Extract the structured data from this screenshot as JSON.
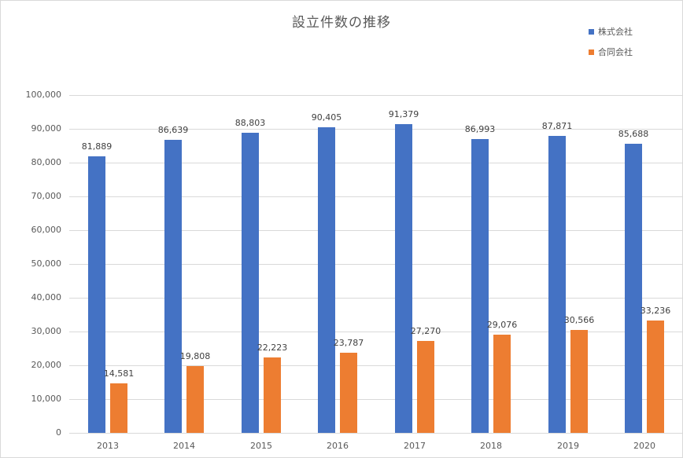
{
  "chart_data": {
    "type": "bar",
    "title": "設立件数の推移",
    "xlabel": "",
    "ylabel": "",
    "ylim": [
      0,
      100000
    ],
    "yticks": [
      0,
      10000,
      20000,
      30000,
      40000,
      50000,
      60000,
      70000,
      80000,
      90000,
      100000
    ],
    "ytick_labels": [
      "0",
      "10,000",
      "20,000",
      "30,000",
      "40,000",
      "50,000",
      "60,000",
      "70,000",
      "80,000",
      "90,000",
      "100,000"
    ],
    "grid": true,
    "legend_position": "top-right",
    "categories": [
      "2013",
      "2014",
      "2015",
      "2016",
      "2017",
      "2018",
      "2019",
      "2020"
    ],
    "series": [
      {
        "name": "株式会社",
        "color": "#4472c4",
        "values": [
          81889,
          86639,
          88803,
          90405,
          91379,
          86993,
          87871,
          85688
        ],
        "labels": [
          "81,889",
          "86,639",
          "88,803",
          "90,405",
          "91,379",
          "86,993",
          "87,871",
          "85,688"
        ]
      },
      {
        "name": "合同会社",
        "color": "#ed7d31",
        "values": [
          14581,
          19808,
          22223,
          23787,
          27270,
          29076,
          30566,
          33236
        ],
        "labels": [
          "14,581",
          "19,808",
          "22,223",
          "23,787",
          "27,270",
          "29,076",
          "30,566",
          "33,236"
        ]
      }
    ]
  }
}
